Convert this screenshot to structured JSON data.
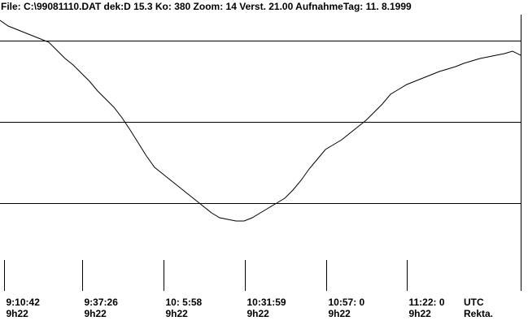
{
  "chart_data": {
    "type": "line",
    "title": "File: C:\\99081110.DAT dek:D 15.3 Ko:  380 Zoom: 14 Verst. 21.00  AufnahmeTag: 11. 8.1999",
    "x": [
      0,
      1,
      2,
      3,
      4,
      5,
      6,
      7,
      8,
      9,
      10,
      11,
      12,
      13,
      14,
      15,
      16,
      17,
      18,
      19,
      20,
      21,
      22,
      23,
      24,
      25,
      26,
      27,
      28,
      29,
      30,
      31,
      32,
      33,
      34,
      35,
      36,
      37,
      38,
      39,
      40,
      41,
      42,
      43,
      44,
      45,
      46,
      47,
      48,
      49,
      50,
      51,
      52,
      53,
      54,
      55,
      56,
      57,
      58,
      59,
      60,
      61,
      62,
      63,
      64
    ],
    "series": [
      {
        "color": "#000000",
        "values": [
          3.25,
          3.18,
          3.14,
          3.1,
          3.06,
          3.02,
          2.98,
          2.88,
          2.78,
          2.7,
          2.6,
          2.5,
          2.38,
          2.28,
          2.18,
          2.05,
          1.9,
          1.74,
          1.58,
          1.44,
          1.36,
          1.28,
          1.2,
          1.12,
          1.04,
          0.96,
          0.88,
          0.82,
          0.8,
          0.78,
          0.78,
          0.82,
          0.88,
          0.94,
          1.0,
          1.06,
          1.16,
          1.28,
          1.42,
          1.54,
          1.66,
          1.72,
          1.78,
          1.86,
          1.94,
          2.02,
          2.12,
          2.22,
          2.34,
          2.4,
          2.46,
          2.5,
          2.54,
          2.58,
          2.62,
          2.65,
          2.68,
          2.72,
          2.75,
          2.78,
          2.8,
          2.82,
          2.84,
          2.87,
          2.82
        ]
      }
    ],
    "xlim": [
      0,
      64
    ],
    "xticks": [
      {
        "value": 0.5,
        "label": "9:10:42"
      },
      {
        "value": 10.1,
        "label": "9:37:26"
      },
      {
        "value": 20.1,
        "label": "10: 5:58"
      },
      {
        "value": 30.1,
        "label": "10:31:59"
      },
      {
        "value": 40.1,
        "label": "10:57: 0"
      },
      {
        "value": 50,
        "label": "11:22: 0"
      }
    ],
    "ra_labels": [
      "9h22",
      "9h22",
      "9h22",
      "9h22",
      "9h22",
      "9h22"
    ],
    "x_unit_labels": [
      "UTC",
      "Rekta."
    ],
    "ylim": [
      0,
      3.32
    ],
    "yticks": [
      1,
      2,
      3
    ],
    "grid": true
  }
}
